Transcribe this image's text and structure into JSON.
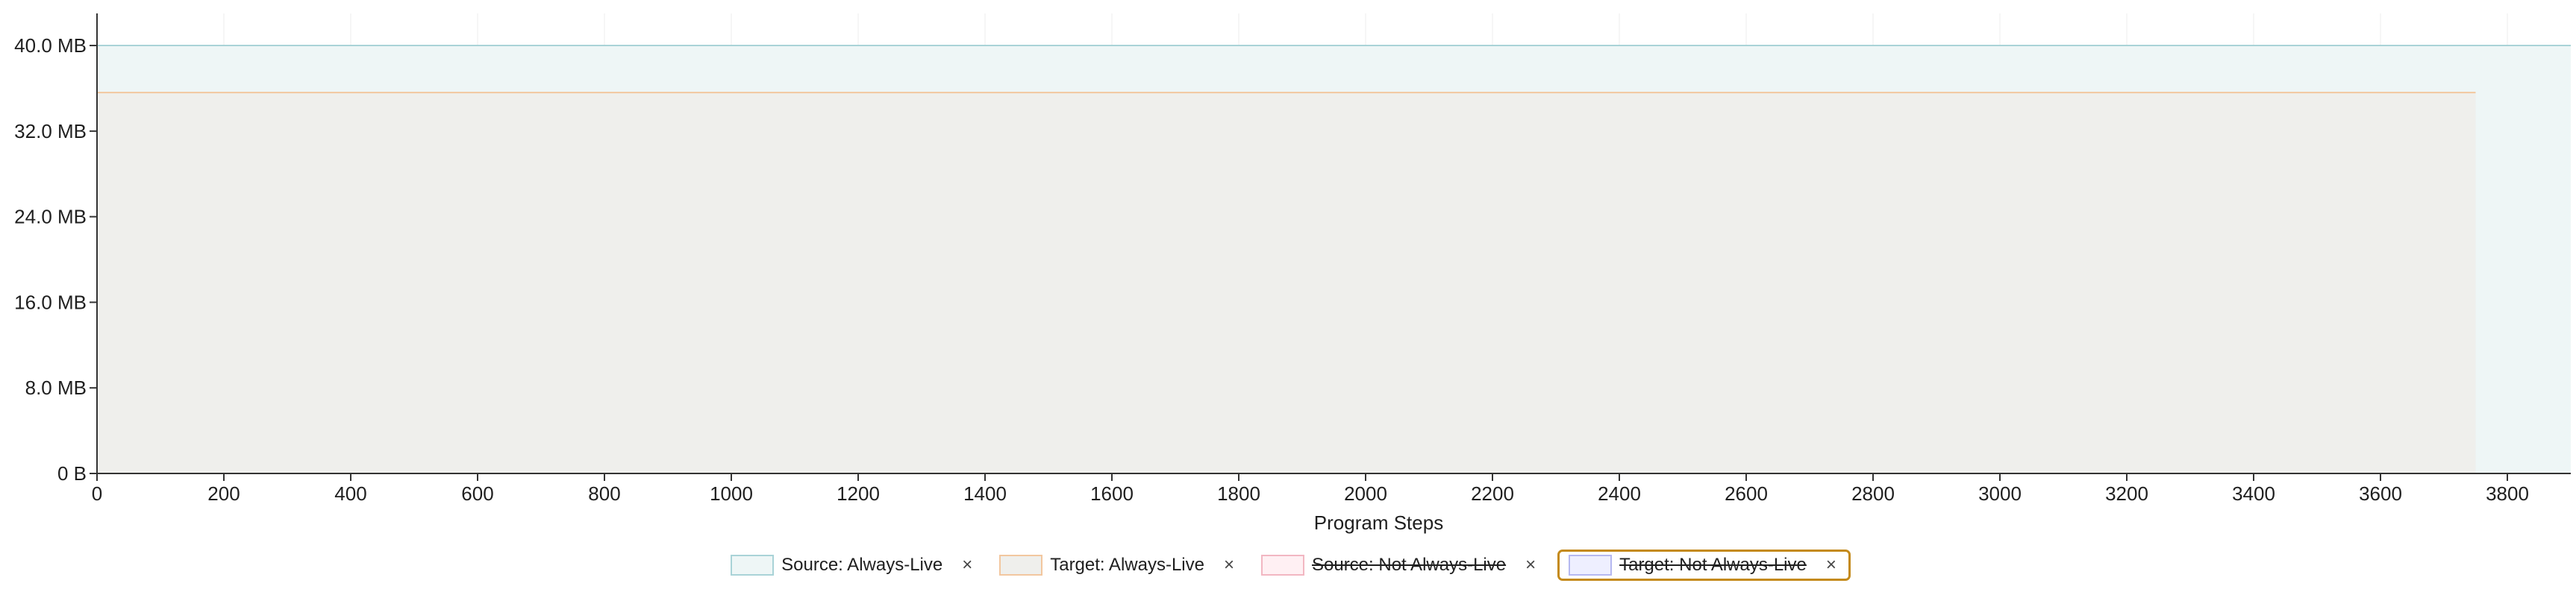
{
  "chart_data": {
    "type": "area",
    "title": "",
    "xlabel": "Program Steps",
    "ylabel": "",
    "xlim": [
      0,
      3900
    ],
    "ylim": [
      0,
      43
    ],
    "x_ticks": [
      0,
      200,
      400,
      600,
      800,
      1000,
      1200,
      1400,
      1600,
      1800,
      2000,
      2200,
      2400,
      2600,
      2800,
      3000,
      3200,
      3400,
      3600,
      3800
    ],
    "y_ticks": [
      0,
      8,
      16,
      24,
      32,
      40
    ],
    "y_tick_labels": [
      "0 B",
      "8.0 MB",
      "16.0 MB",
      "24.0 MB",
      "32.0 MB",
      "40.0 MB"
    ],
    "grid": true,
    "legend_position": "bottom-center",
    "series": [
      {
        "name": "Source: Always-Live",
        "x": [
          0,
          3900
        ],
        "y": [
          40,
          40
        ],
        "fill_color": "#eef6f6",
        "line_color": "#a9d3d7",
        "visible": true,
        "selected": false
      },
      {
        "name": "Target: Always-Live",
        "x": [
          0,
          3750
        ],
        "y": [
          35.6,
          35.6
        ],
        "fill_color": "#efefec",
        "line_color": "#f2c79f",
        "visible": true,
        "selected": false
      },
      {
        "name": "Source: Not Always-Live",
        "x": [
          0,
          3750
        ],
        "y": [
          0,
          0
        ],
        "fill_color": "#fff0f3",
        "line_color": "#f2b7c2",
        "visible": false,
        "selected": false
      },
      {
        "name": "Target: Not Always-Live",
        "x": [
          0,
          3750
        ],
        "y": [
          0,
          0
        ],
        "fill_color": "#eeefff",
        "line_color": "#b5b8f0",
        "visible": false,
        "selected": true
      }
    ]
  },
  "legend": {
    "close_symbol": "×"
  }
}
